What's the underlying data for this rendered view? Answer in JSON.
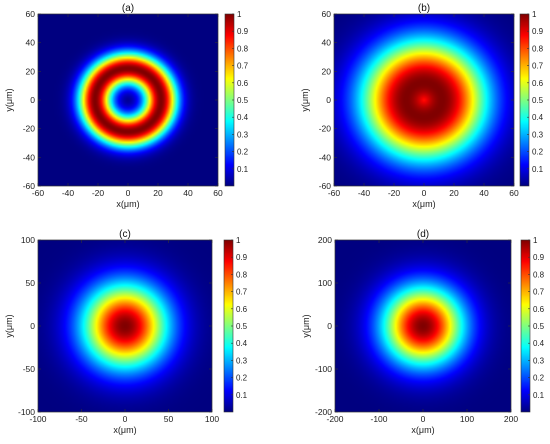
{
  "chart_data": [
    {
      "type": "heatmap",
      "title": "(a)",
      "xlabel": "x(μm)",
      "ylabel": "y(μm)",
      "xlim": [
        -60,
        60
      ],
      "ylim": [
        -60,
        60
      ],
      "xticks": [
        -60,
        -40,
        -20,
        0,
        20,
        40,
        60
      ],
      "yticks": [
        -60,
        -40,
        -20,
        0,
        20,
        40,
        60
      ],
      "field": {
        "profile": "ring",
        "center": [
          0,
          0
        ],
        "peak_radius": 22,
        "ring_width": 11,
        "background": 0.0
      },
      "colorbar": {
        "ticks": [
          0.1,
          0.2,
          0.3,
          0.4,
          0.5,
          0.6,
          0.7,
          0.8,
          0.9,
          1
        ],
        "labels": [
          "0.1",
          "0.2",
          "0.3",
          "0.4",
          "0.5",
          "0.6",
          "0.7",
          "0.8",
          "0.9",
          "1"
        ],
        "range": [
          0,
          1
        ]
      }
    },
    {
      "type": "heatmap",
      "title": "(b)",
      "xlabel": "x(μm)",
      "ylabel": "y(μm)",
      "xlim": [
        -60,
        60
      ],
      "ylim": [
        -60,
        60
      ],
      "xticks": [
        -60,
        -40,
        -20,
        0,
        20,
        40,
        60
      ],
      "yticks": [
        -60,
        -40,
        -20,
        0,
        20,
        40,
        60
      ],
      "field": {
        "profile": "ring",
        "center": [
          0,
          0
        ],
        "peak_radius": 12,
        "ring_width": 30,
        "background": 0.0
      },
      "colorbar": {
        "ticks": [
          0.1,
          0.2,
          0.3,
          0.4,
          0.5,
          0.6,
          0.7,
          0.8,
          0.9,
          1
        ],
        "labels": [
          "0.1",
          "0.2",
          "0.3",
          "0.4",
          "0.5",
          "0.6",
          "0.7",
          "0.8",
          "0.9",
          "1"
        ],
        "range": [
          0,
          1
        ]
      }
    },
    {
      "type": "heatmap",
      "title": "(c)",
      "xlabel": "x(μm)",
      "ylabel": "y(μm)",
      "xlim": [
        -100,
        100
      ],
      "ylim": [
        -100,
        100
      ],
      "xticks": [
        -100,
        -50,
        0,
        50,
        100
      ],
      "yticks": [
        -100,
        -50,
        0,
        50,
        100
      ],
      "field": {
        "profile": "gaussian",
        "center": [
          0,
          0
        ],
        "width": 48,
        "background": 0.0
      },
      "colorbar": {
        "ticks": [
          0.1,
          0.2,
          0.3,
          0.4,
          0.5,
          0.6,
          0.7,
          0.8,
          0.9,
          1
        ],
        "labels": [
          "0.1",
          "0.2",
          "0.3",
          "0.4",
          "0.5",
          "0.6",
          "0.7",
          "0.8",
          "0.9",
          "1"
        ],
        "range": [
          0,
          1
        ]
      }
    },
    {
      "type": "heatmap",
      "title": "(d)",
      "xlabel": "x(μm)",
      "ylabel": "y(μm)",
      "xlim": [
        -200,
        200
      ],
      "ylim": [
        -200,
        200
      ],
      "xticks": [
        -200,
        -100,
        0,
        100,
        200
      ],
      "yticks": [
        -200,
        -100,
        0,
        100,
        200
      ],
      "field": {
        "profile": "gaussian",
        "center": [
          0,
          0
        ],
        "width": 90,
        "background": 0.0
      },
      "colorbar": {
        "ticks": [
          0.1,
          0.2,
          0.3,
          0.4,
          0.5,
          0.6,
          0.7,
          0.8,
          0.9,
          1
        ],
        "labels": [
          "0.1",
          "0.2",
          "0.3",
          "0.4",
          "0.5",
          "0.6",
          "0.7",
          "0.8",
          "0.9",
          "1"
        ],
        "range": [
          0,
          1
        ]
      }
    }
  ]
}
